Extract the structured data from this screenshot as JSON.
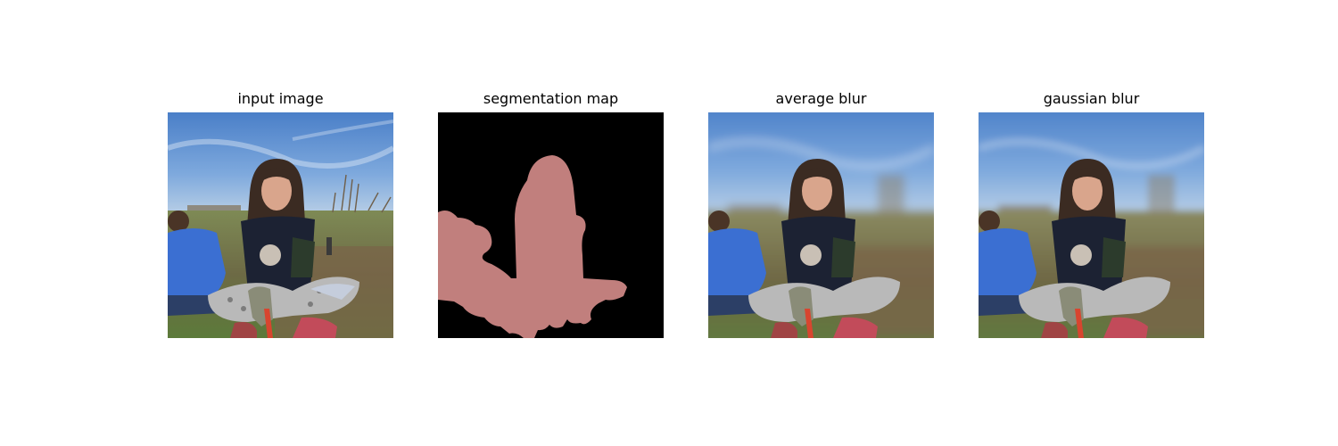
{
  "figure": {
    "panels": [
      {
        "title": "input image"
      },
      {
        "title": "segmentation map"
      },
      {
        "title": "average blur"
      },
      {
        "title": "gaussian blur"
      }
    ]
  },
  "colors": {
    "background": "#ffffff",
    "segmentation_background": "#000000",
    "segmentation_foreground": "#c17f7d",
    "sky": "#5b8dd0",
    "grass": "#6b7f45",
    "dirt": "#7d6347",
    "hair": "#3b2b22",
    "skin": "#d9a58c",
    "shirt_dark": "#1c2233",
    "boy_shirt": "#3b6fd2",
    "leggings": "#b9b9b9"
  }
}
